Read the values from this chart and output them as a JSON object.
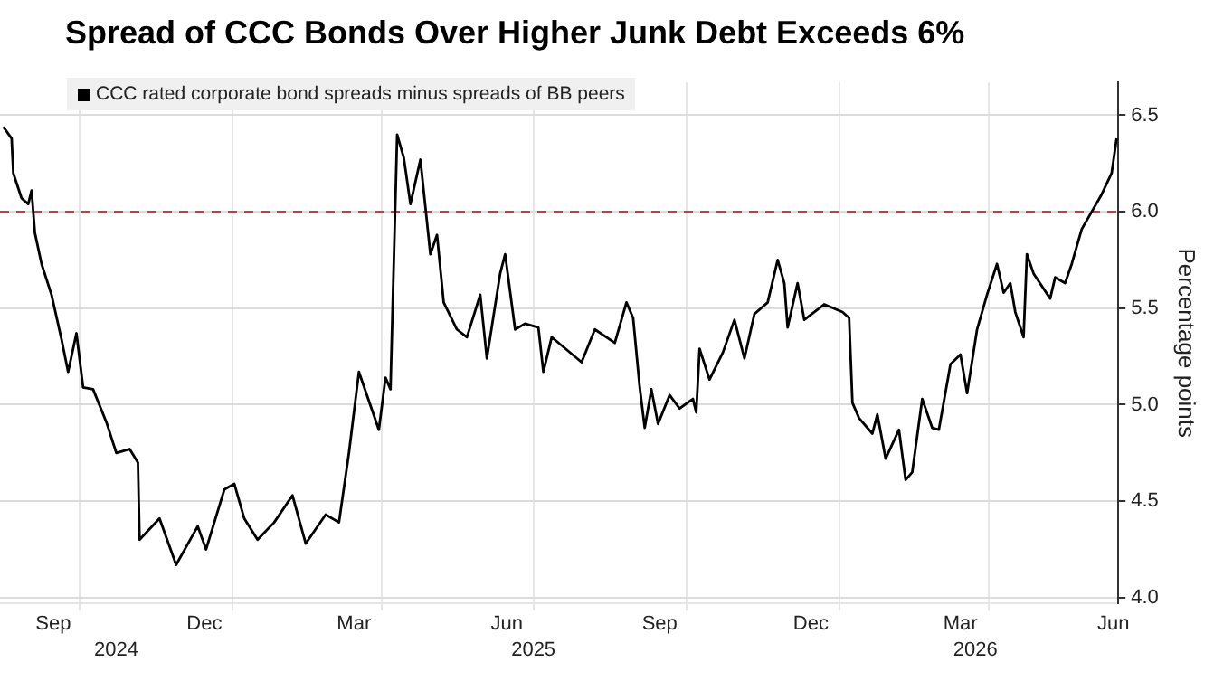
{
  "chart_data": {
    "type": "line",
    "title": "Spread of CCC Bonds Over Higher Junk Debt Exceeds 6%",
    "ylabel": "Percentage points",
    "legend": "top left",
    "grid": true,
    "marker": "none",
    "line_style": "solid",
    "xlim": [
      "2024-08-14",
      "2026-06-18"
    ],
    "xticks": [
      {
        "value": "2024-09-15",
        "label": "Sep"
      },
      {
        "value": "2024-12-15",
        "label": "Dec"
      },
      {
        "value": "2025-03-15",
        "label": "Mar"
      },
      {
        "value": "2025-06-15",
        "label": "Jun"
      },
      {
        "value": "2025-09-15",
        "label": "Sep"
      },
      {
        "value": "2025-12-15",
        "label": "Dec"
      },
      {
        "value": "2026-03-15",
        "label": "Mar"
      },
      {
        "value": "2026-06-15",
        "label": "Jun"
      },
      {
        "value": "2024-10-01",
        "label": null
      },
      {
        "value": "2025-01-01",
        "label": null
      },
      {
        "value": "2025-04-01",
        "label": null
      },
      {
        "value": "2025-07-01",
        "label": null
      },
      {
        "value": "2025-10-01",
        "label": null
      },
      {
        "value": "2026-01-01",
        "label": null
      },
      {
        "value": "2026-04-01",
        "label": null
      }
    ],
    "x2lim": [
      "2024-08-14",
      "2026-06-18"
    ],
    "x2ticks": [
      {
        "value": "2024-10-23",
        "label": "2024"
      },
      {
        "value": "2025-07-01",
        "label": "2025"
      },
      {
        "value": "2026-03-24",
        "label": "2026"
      }
    ],
    "ylim": [
      3.97,
      6.67
    ],
    "yticks": [
      {
        "value": 4,
        "label": "4.0"
      },
      {
        "value": 4.5,
        "label": "4.5"
      },
      {
        "value": 5,
        "label": "5.0"
      },
      {
        "value": 5.5,
        "label": "5.5"
      },
      {
        "value": 6,
        "label": "6.0"
      },
      {
        "value": 6.5,
        "label": "6.5"
      }
    ],
    "ref_lines": [
      {
        "axis": "y",
        "value": 6,
        "color": "#e0303a",
        "line_style": "dashed"
      }
    ],
    "series": [
      {
        "name": "CCC rated corporate bond spreads minus spreads of BB peers",
        "color": "#000000",
        "x": [
          "2024-08-16",
          "2024-08-21",
          "2024-08-22",
          "2024-08-27",
          "2024-08-31",
          "2024-09-02",
          "2024-09-04",
          "2024-09-08",
          "2024-09-14",
          "2024-09-20",
          "2024-09-24",
          "2024-09-29",
          "2024-10-03",
          "2024-10-09",
          "2024-10-17",
          "2024-10-23",
          "2024-10-31",
          "2024-11-05",
          "2024-11-06",
          "2024-11-18",
          "2024-11-28",
          "2024-12-11",
          "2024-12-16",
          "2024-12-27",
          "2025-01-02",
          "2025-01-08",
          "2025-01-16",
          "2025-01-26",
          "2025-02-06",
          "2025-02-14",
          "2025-02-26",
          "2025-03-06",
          "2025-03-12",
          "2025-03-18",
          "2025-03-30",
          "2025-04-03",
          "2025-04-06",
          "2025-04-10",
          "2025-04-14",
          "2025-04-18",
          "2025-04-24",
          "2025-04-30",
          "2025-05-04",
          "2025-05-08",
          "2025-05-16",
          "2025-05-22",
          "2025-05-30",
          "2025-06-03",
          "2025-06-11",
          "2025-06-14",
          "2025-06-20",
          "2025-06-26",
          "2025-07-04",
          "2025-07-07",
          "2025-07-12",
          "2025-07-30",
          "2025-08-07",
          "2025-08-19",
          "2025-08-26",
          "2025-08-30",
          "2025-09-03",
          "2025-09-06",
          "2025-09-10",
          "2025-09-14",
          "2025-09-21",
          "2025-09-27",
          "2025-10-05",
          "2025-10-07",
          "2025-10-09",
          "2025-10-15",
          "2025-10-23",
          "2025-10-30",
          "2025-11-05",
          "2025-11-11",
          "2025-11-19",
          "2025-11-25",
          "2025-11-29",
          "2025-12-01",
          "2025-12-07",
          "2025-12-11",
          "2025-12-23",
          "2026-01-03",
          "2026-01-07",
          "2026-01-09",
          "2026-01-13",
          "2026-01-21",
          "2026-01-24",
          "2026-01-29",
          "2026-02-06",
          "2026-02-10",
          "2026-02-14",
          "2026-02-20",
          "2026-02-26",
          "2026-03-02",
          "2026-03-09",
          "2026-03-15",
          "2026-03-19",
          "2026-03-25",
          "2026-03-31",
          "2026-04-06",
          "2026-04-10",
          "2026-04-14",
          "2026-04-17",
          "2026-04-22",
          "2026-04-24",
          "2026-04-28",
          "2026-05-08",
          "2026-05-11",
          "2026-05-17",
          "2026-05-21",
          "2026-05-27",
          "2026-06-02",
          "2026-06-08",
          "2026-06-14",
          "2026-06-17"
        ],
        "values": [
          6.44,
          6.38,
          6.2,
          6.07,
          6.04,
          6.11,
          5.89,
          5.73,
          5.57,
          5.34,
          5.17,
          5.37,
          5.09,
          5.08,
          4.91,
          4.75,
          4.77,
          4.7,
          4.3,
          4.41,
          4.17,
          4.37,
          4.25,
          4.56,
          4.59,
          4.41,
          4.3,
          4.39,
          4.53,
          4.28,
          4.43,
          4.39,
          4.75,
          5.17,
          4.87,
          5.14,
          5.08,
          6.4,
          6.28,
          6.04,
          6.27,
          5.78,
          5.88,
          5.53,
          5.39,
          5.35,
          5.57,
          5.24,
          5.68,
          5.78,
          5.39,
          5.42,
          5.4,
          5.17,
          5.35,
          5.22,
          5.39,
          5.32,
          5.53,
          5.45,
          5.09,
          4.88,
          5.08,
          4.9,
          5.05,
          4.98,
          5.03,
          4.96,
          5.29,
          5.13,
          5.27,
          5.44,
          5.24,
          5.47,
          5.53,
          5.75,
          5.63,
          5.4,
          5.63,
          5.44,
          5.52,
          5.48,
          5.45,
          5.01,
          4.93,
          4.85,
          4.95,
          4.72,
          4.87,
          4.61,
          4.65,
          5.03,
          4.88,
          4.87,
          5.21,
          5.26,
          5.06,
          5.39,
          5.57,
          5.73,
          5.58,
          5.63,
          5.48,
          5.35,
          5.78,
          5.68,
          5.55,
          5.66,
          5.63,
          5.73,
          5.91,
          6.0,
          6.09,
          6.2,
          6.38
        ]
      }
    ]
  }
}
